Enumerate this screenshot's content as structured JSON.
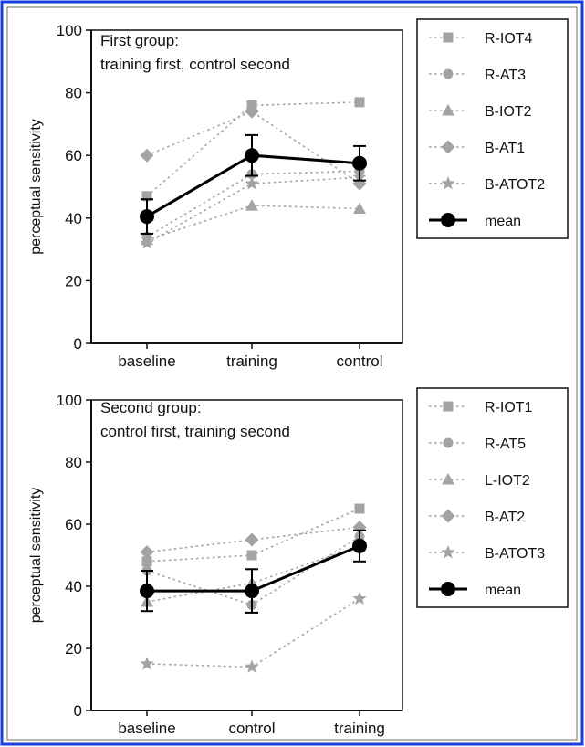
{
  "colors": {
    "frame_border": "#1a3fe0",
    "series": "#a3a3a3",
    "mean": "#000000",
    "axis": "#111111"
  },
  "chart_data": [
    {
      "type": "line",
      "title": "First group:",
      "subtitle": "training first, control second",
      "categories": [
        "baseline",
        "training",
        "control"
      ],
      "xlabel": "",
      "ylabel": "perceptual sensitivity",
      "ylim": [
        0,
        100
      ],
      "yticks": [
        0,
        20,
        40,
        60,
        80,
        100
      ],
      "grid": false,
      "legend_position": "right",
      "series": [
        {
          "name": "R-IOT4",
          "marker": "square",
          "values": [
            47,
            76,
            77
          ]
        },
        {
          "name": "R-AT3",
          "marker": "circle",
          "values": [
            34,
            54,
            55
          ]
        },
        {
          "name": "B-IOT2",
          "marker": "triangle",
          "values": [
            33,
            44,
            43
          ]
        },
        {
          "name": "B-AT1",
          "marker": "diamond",
          "values": [
            60,
            74,
            51
          ]
        },
        {
          "name": "B-ATOT2",
          "marker": "star",
          "values": [
            32,
            51,
            53
          ]
        },
        {
          "name": "mean",
          "marker": "mean",
          "values": [
            40.5,
            60,
            57.5
          ],
          "errors": [
            5.5,
            6.5,
            5.5
          ]
        }
      ]
    },
    {
      "type": "line",
      "title": "Second group:",
      "subtitle": "control first, training second",
      "categories": [
        "baseline",
        "control",
        "training"
      ],
      "xlabel": "",
      "ylabel": "perceptual sensitivity",
      "ylim": [
        0,
        100
      ],
      "yticks": [
        0,
        20,
        40,
        60,
        80,
        100
      ],
      "grid": false,
      "legend_position": "right",
      "series": [
        {
          "name": "R-IOT1",
          "marker": "square",
          "values": [
            48,
            50,
            65
          ]
        },
        {
          "name": "R-AT5",
          "marker": "circle",
          "values": [
            45,
            34,
            56
          ]
        },
        {
          "name": "L-IOT2",
          "marker": "triangle",
          "values": [
            35,
            41,
            53
          ]
        },
        {
          "name": "B-AT2",
          "marker": "diamond",
          "values": [
            51,
            55,
            59
          ]
        },
        {
          "name": "B-ATOT3",
          "marker": "star",
          "values": [
            15,
            14,
            36
          ]
        },
        {
          "name": "mean",
          "marker": "mean",
          "values": [
            38.5,
            38.5,
            53
          ],
          "errors": [
            6.5,
            7,
            5
          ]
        }
      ]
    }
  ]
}
